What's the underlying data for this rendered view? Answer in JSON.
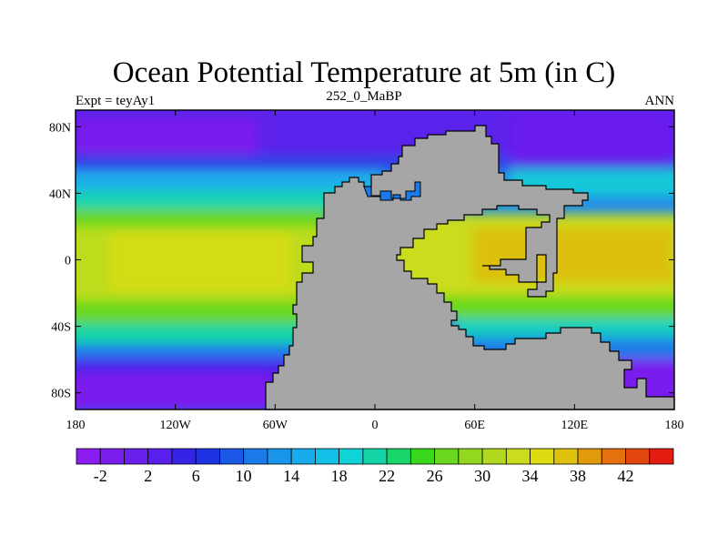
{
  "title": "Ocean Potential Temperature at 5m (in C)",
  "subtitle_left": "Expt = teyAy1",
  "subtitle_center": "252_0_MaBP",
  "subtitle_right": "ANN",
  "land_color": "#a6a6a6",
  "chart_data": {
    "type": "heatmap",
    "variable": "Ocean Potential Temperature at 5m",
    "units": "C",
    "x_range": [
      -180,
      180
    ],
    "y_range": [
      -90,
      90
    ],
    "x_ticks": [
      {
        "value": -180,
        "label": "180"
      },
      {
        "value": -120,
        "label": "120W"
      },
      {
        "value": -60,
        "label": "60W"
      },
      {
        "value": 0,
        "label": "0"
      },
      {
        "value": 60,
        "label": "60E"
      },
      {
        "value": 120,
        "label": "120E"
      },
      {
        "value": 180,
        "label": "180"
      }
    ],
    "y_ticks": [
      {
        "value": 80,
        "label": "80N"
      },
      {
        "value": 40,
        "label": "40N"
      },
      {
        "value": 0,
        "label": "0"
      },
      {
        "value": -40,
        "label": "40S"
      },
      {
        "value": -80,
        "label": "80S"
      }
    ],
    "colorbar": {
      "min": -4,
      "max": 44,
      "step": 2,
      "colors": [
        "#8b1cef",
        "#7a1ded",
        "#6a1fed",
        "#5820ea",
        "#3624e6",
        "#1e34e3",
        "#1a58e6",
        "#1a7ae9",
        "#1894e9",
        "#17acec",
        "#12c0e8",
        "#10d3d8",
        "#14d4a5",
        "#18d66a",
        "#3ad81c",
        "#6ad81f",
        "#92d820",
        "#b2d820",
        "#cadc1c",
        "#dcdc10",
        "#e0c20e",
        "#e29a0d",
        "#e4700e",
        "#e4460f",
        "#e41c10"
      ],
      "tick_labels": [
        "-2",
        "2",
        "6",
        "10",
        "14",
        "18",
        "22",
        "26",
        "30",
        "34",
        "38",
        "42"
      ]
    }
  }
}
